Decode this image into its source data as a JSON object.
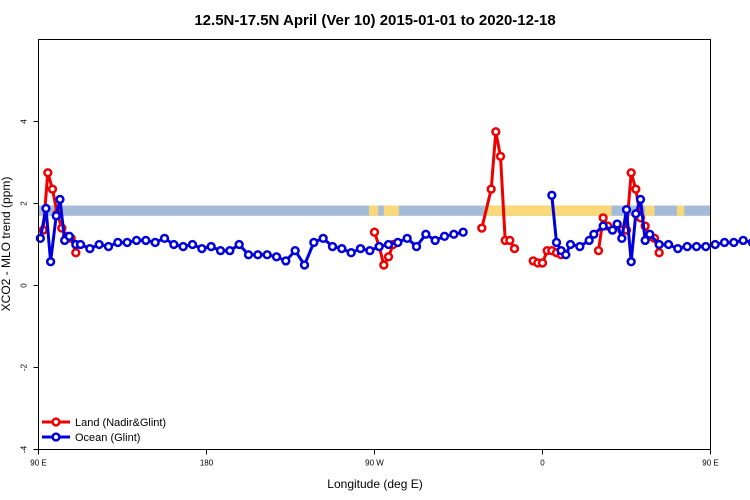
{
  "chart_data": {
    "type": "line",
    "title": "12.5N-17.5N April (Ver 10)   2015-01-01 to 2020-12-18",
    "xlabel": "Longitude (deg E)",
    "ylabel": "XCO2 - MLO trend (ppm)",
    "xlim": [
      90,
      450
    ],
    "ylim": [
      -4,
      6
    ],
    "x_ticks": [
      {
        "value": 90,
        "label": "90 E"
      },
      {
        "value": 180,
        "label": "180"
      },
      {
        "value": 270,
        "label": "90 W"
      },
      {
        "value": 360,
        "label": "0"
      },
      {
        "value": 450,
        "label": "90 E"
      },
      {
        "value": 540,
        "label": "180"
      }
    ],
    "y_ticks": [
      {
        "value": -4,
        "label": "-4"
      },
      {
        "value": -2,
        "label": "-2"
      },
      {
        "value": 0,
        "label": "0"
      },
      {
        "value": 2,
        "label": "2"
      },
      {
        "value": 4,
        "label": "4"
      }
    ],
    "legend_position": "bottom-left",
    "legend": [
      {
        "label": "Land (Nadir&Glint)",
        "color": "#ee0000"
      },
      {
        "label": "Ocean (Glint)",
        "color": "#0000dd"
      }
    ],
    "band": {
      "y_range": [
        1.7,
        1.95
      ],
      "color": "#a4bcd8",
      "land_color": "#f8d878"
    },
    "land_band_segments": [
      [
        267,
        272
      ],
      [
        275,
        283
      ],
      [
        329,
        397
      ],
      [
        415,
        420
      ],
      [
        432,
        436
      ],
      [
        450,
        460
      ],
      [
        472,
        474
      ]
    ],
    "series": [
      {
        "name": "Land (Nadir&Glint)",
        "color": "#ee0000",
        "segments": [
          [
            [
              92.5,
              1.35
            ],
            [
              95,
              2.75
            ],
            [
              97.5,
              2.35
            ],
            [
              100,
              1.75
            ],
            [
              102.5,
              1.4
            ],
            [
              105,
              1.2
            ],
            [
              107.5,
              1.15
            ],
            [
              110,
              0.8
            ]
          ],
          [
            [
              270,
              1.3
            ],
            [
              272.5,
              0.95
            ],
            [
              275,
              0.5
            ],
            [
              277.5,
              0.7
            ],
            [
              280,
              1.0
            ]
          ],
          [
            [
              327.5,
              1.4
            ],
            [
              332.5,
              2.35
            ],
            [
              335,
              3.75
            ],
            [
              337.5,
              3.15
            ],
            [
              340,
              1.1
            ],
            [
              342.5,
              1.1
            ],
            [
              345,
              0.9
            ]
          ],
          [
            [
              355,
              0.6
            ],
            [
              357.5,
              0.55
            ],
            [
              360,
              0.55
            ],
            [
              362.5,
              0.85
            ],
            [
              365,
              0.85
            ],
            [
              367.5,
              0.8
            ],
            [
              370,
              0.75
            ]
          ],
          [
            [
              390,
              0.85
            ],
            [
              392.5,
              1.65
            ],
            [
              395,
              1.45
            ]
          ],
          [
            [
              402.5,
              1.35
            ],
            [
              405,
              1.35
            ],
            [
              407.5,
              2.75
            ],
            [
              410,
              2.35
            ],
            [
              412.5,
              1.65
            ],
            [
              415,
              1.45
            ],
            [
              417.5,
              1.2
            ],
            [
              420,
              1.15
            ],
            [
              422.5,
              0.8
            ]
          ]
        ]
      },
      {
        "name": "Ocean (Glint)",
        "color": "#0000dd",
        "segments": [
          [
            [
              91,
              1.15
            ],
            [
              94,
              1.88
            ],
            [
              96.5,
              0.58
            ],
            [
              99.5,
              1.7
            ],
            [
              101.5,
              2.1
            ],
            [
              104,
              1.1
            ],
            [
              106.5,
              1.2
            ],
            [
              110,
              1.0
            ],
            [
              112.5,
              1.0
            ],
            [
              117.5,
              0.9
            ],
            [
              122.5,
              1.0
            ],
            [
              127.5,
              0.95
            ],
            [
              132.5,
              1.05
            ],
            [
              137.5,
              1.05
            ],
            [
              142.5,
              1.1
            ],
            [
              147.5,
              1.1
            ],
            [
              152.5,
              1.05
            ],
            [
              157.5,
              1.15
            ],
            [
              162.5,
              1.0
            ],
            [
              167.5,
              0.95
            ],
            [
              172.5,
              1.0
            ],
            [
              177.5,
              0.9
            ],
            [
              182.5,
              0.95
            ],
            [
              187.5,
              0.85
            ],
            [
              192.5,
              0.85
            ],
            [
              197.5,
              1.0
            ],
            [
              202.5,
              0.75
            ],
            [
              207.5,
              0.75
            ],
            [
              212.5,
              0.75
            ],
            [
              217.5,
              0.7
            ],
            [
              222.5,
              0.6
            ],
            [
              227.5,
              0.85
            ],
            [
              232.5,
              0.5
            ],
            [
              237.5,
              1.05
            ],
            [
              242.5,
              1.15
            ],
            [
              247.5,
              0.95
            ],
            [
              252.5,
              0.9
            ],
            [
              257.5,
              0.8
            ],
            [
              262.5,
              0.9
            ],
            [
              267.5,
              0.85
            ],
            [
              272.5,
              0.95
            ],
            [
              277.5,
              1.0
            ],
            [
              282.5,
              1.05
            ],
            [
              287.5,
              1.15
            ],
            [
              292.5,
              0.95
            ],
            [
              297.5,
              1.25
            ],
            [
              302.5,
              1.1
            ],
            [
              307.5,
              1.2
            ],
            [
              312.5,
              1.25
            ],
            [
              317.5,
              1.3
            ]
          ],
          [
            [
              365,
              2.2
            ],
            [
              367.5,
              1.05
            ],
            [
              370,
              0.85
            ],
            [
              372.5,
              0.75
            ],
            [
              375,
              1.0
            ],
            [
              380,
              0.95
            ],
            [
              385,
              1.1
            ],
            [
              387.5,
              1.25
            ],
            [
              392.5,
              1.45
            ],
            [
              397.5,
              1.35
            ],
            [
              400,
              1.5
            ],
            [
              402.5,
              1.15
            ],
            [
              405,
              1.85
            ],
            [
              407.5,
              0.58
            ],
            [
              410,
              1.75
            ],
            [
              412.5,
              2.1
            ],
            [
              415,
              1.1
            ],
            [
              417.5,
              1.25
            ],
            [
              422.5,
              1.0
            ],
            [
              427.5,
              1.0
            ],
            [
              432.5,
              0.9
            ],
            [
              437.5,
              0.95
            ],
            [
              442.5,
              0.95
            ],
            [
              447.5,
              0.95
            ],
            [
              452.5,
              1.0
            ],
            [
              457.5,
              1.05
            ],
            [
              462.5,
              1.05
            ],
            [
              467.5,
              1.1
            ],
            [
              472.5,
              1.05
            ],
            [
              477.5,
              1.0
            ]
          ]
        ]
      }
    ]
  }
}
